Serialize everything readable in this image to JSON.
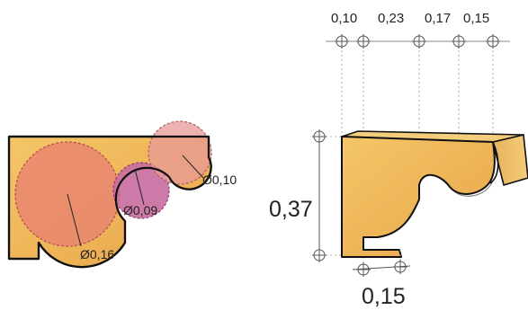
{
  "profile_diagram": {
    "circles": [
      {
        "label": "Ø0,16",
        "fill": "#e98870"
      },
      {
        "label": "Ø0,09",
        "fill": "#c86b9f"
      },
      {
        "label": "Ø0,10",
        "fill": "#e79a98"
      }
    ],
    "wood_color": "#f0b856"
  },
  "bracket_diagram": {
    "top_dimensions": [
      "0,10",
      "0,23",
      "0,17",
      "0,15"
    ],
    "height_dimension": "0,37",
    "bottom_dimension": "0,15",
    "wood_color": "#f2c15f",
    "side_color": "#e8a64c"
  }
}
